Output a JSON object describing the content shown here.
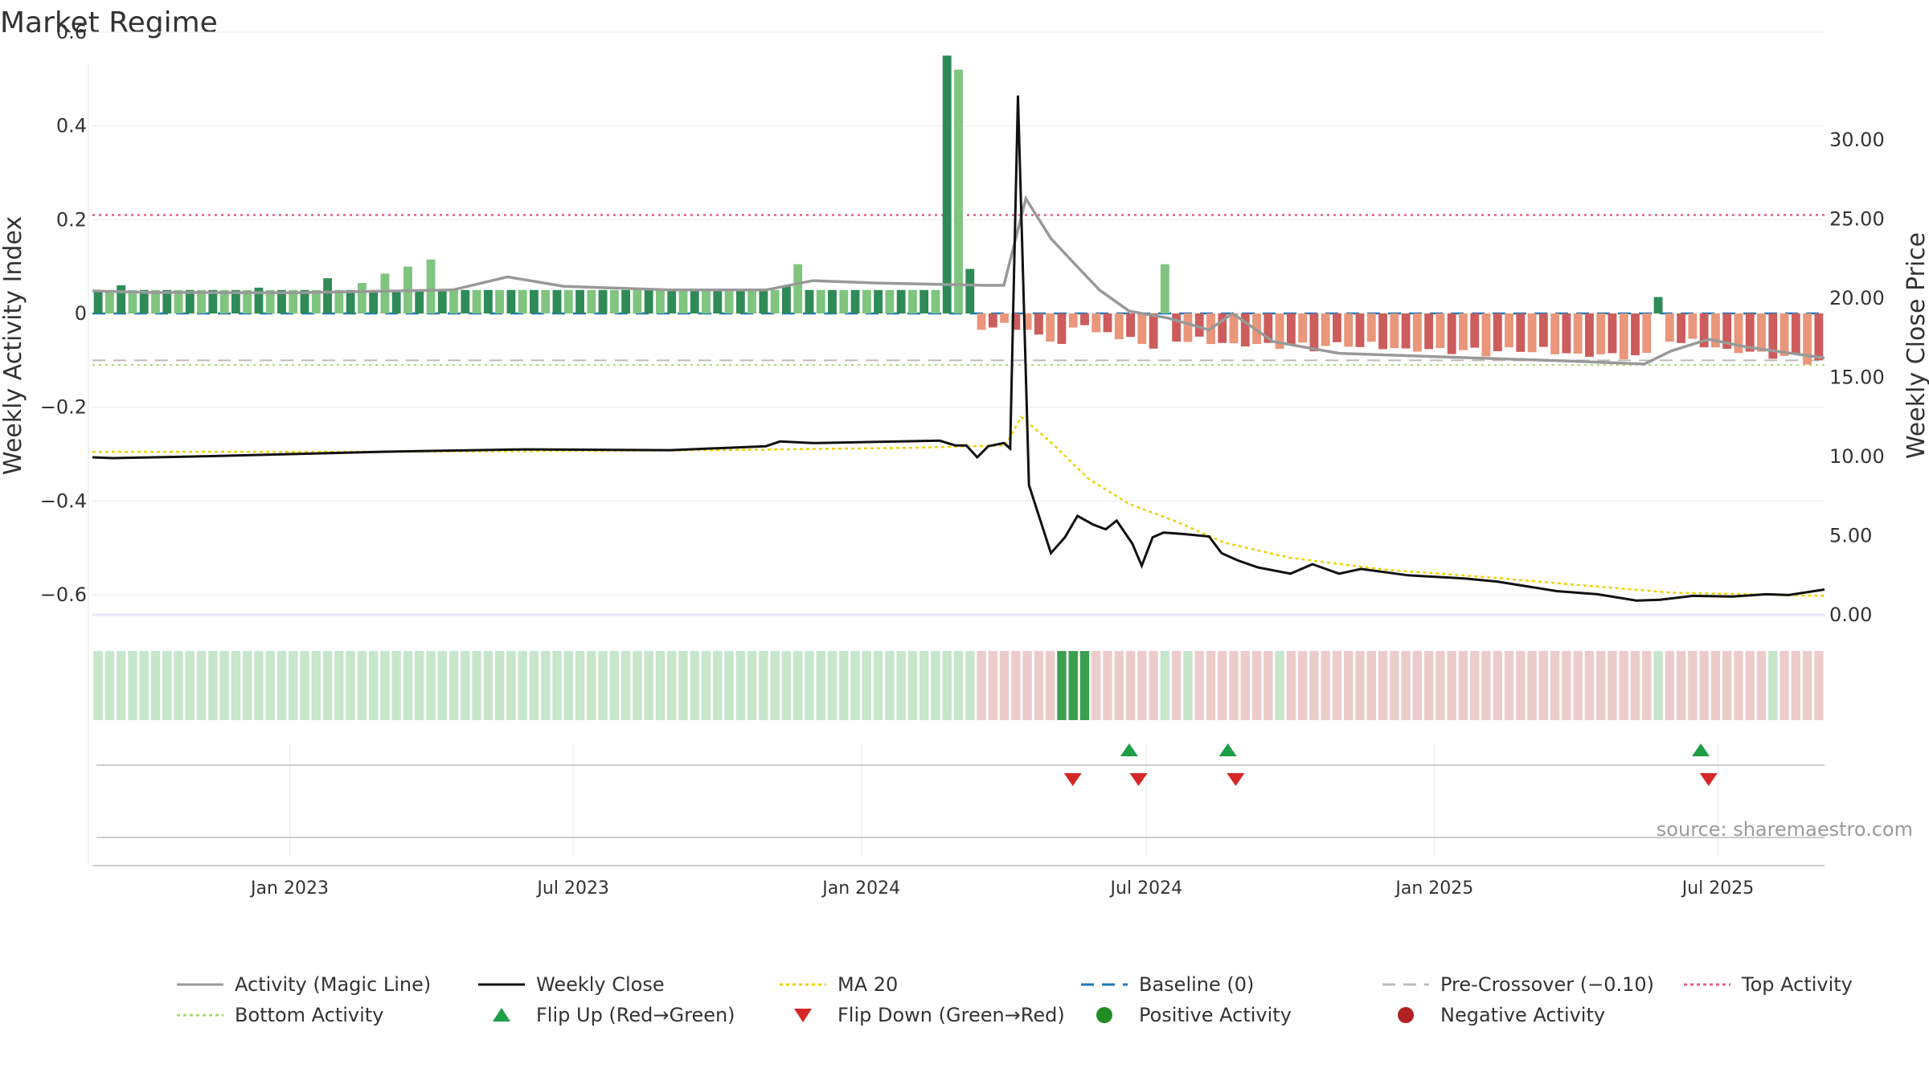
{
  "chart_data": {
    "type": "bar",
    "title": "Market Regime",
    "ylabel_left": "Weekly Activity Index",
    "ylabel_right": "Weekly Close Price",
    "ylim_left": [
      -0.6,
      0.6
    ],
    "ylim_right": [
      0,
      34
    ],
    "yticks_left": [
      "0.6",
      "0.4",
      "0.2",
      "0",
      "−0.2",
      "−0.4",
      "−0.6"
    ],
    "yticks_left_values": [
      0.6,
      0.4,
      0.2,
      0,
      -0.2,
      -0.4,
      -0.6
    ],
    "yticks_right": [
      "30.00",
      "25.00",
      "20.00",
      "15.00",
      "10.00",
      "5.00",
      "0.00"
    ],
    "yticks_right_values": [
      30,
      25,
      20,
      15,
      10,
      5,
      0
    ],
    "xticks": [
      {
        "label": "Jan 2023",
        "date": "2023-01-01"
      },
      {
        "label": "Jul 2023",
        "date": "2023-07-01"
      },
      {
        "label": "Jan 2024",
        "date": "2024-01-01"
      },
      {
        "label": "Jul 2024",
        "date": "2024-07-01"
      },
      {
        "label": "Jan 2025",
        "date": "2025-01-01"
      },
      {
        "label": "Jul 2025",
        "date": "2025-07-01"
      }
    ],
    "x_start": "2022-08-28",
    "x_end": "2025-09-07",
    "reference_lines": {
      "top_activity": 0.21,
      "baseline": 0,
      "pre_crossover": -0.1,
      "bottom_activity": -0.11
    },
    "activity_segments": [
      {
        "count": 74,
        "value": 0.05,
        "peaks": {
          "2": 0.06,
          "10": 0.05,
          "14": 0.055,
          "18": 0.05,
          "20": 0.075,
          "23": 0.065,
          "25": 0.085,
          "27": 0.1,
          "29": 0.115,
          "36": 0.05,
          "60": 0.06,
          "61": 0.105,
          "73": 0.05
        }
      },
      {
        "count": 3,
        "values": [
          0.55,
          0.52,
          0.095
        ]
      },
      {
        "count": 8,
        "values": [
          -0.035,
          -0.03,
          -0.02,
          -0.035,
          -0.035,
          -0.045,
          -0.06,
          -0.065
        ]
      },
      {
        "count": 8,
        "values": [
          -0.03,
          -0.025,
          -0.04,
          -0.04,
          -0.055,
          -0.05,
          -0.065,
          -0.075
        ]
      },
      {
        "count": 1,
        "values": [
          0.105
        ]
      },
      {
        "count": 42,
        "start": -0.06,
        "end": -0.09
      },
      {
        "count": 1,
        "values": [
          0.035
        ]
      },
      {
        "count": 14,
        "start": -0.06,
        "end": -0.1
      }
    ],
    "magic_line": [
      [
        "2022-08-28",
        0.048
      ],
      [
        "2022-10-01",
        0.045
      ],
      [
        "2023-01-01",
        0.044
      ],
      [
        "2023-04-15",
        0.05
      ],
      [
        "2023-05-20",
        0.078
      ],
      [
        "2023-06-25",
        0.058
      ],
      [
        "2023-09-01",
        0.05
      ],
      [
        "2023-11-01",
        0.05
      ],
      [
        "2023-12-01",
        0.07
      ],
      [
        "2024-01-10",
        0.065
      ],
      [
        "2024-03-20",
        0.06
      ],
      [
        "2024-04-01",
        0.06
      ],
      [
        "2024-04-15",
        0.245
      ],
      [
        "2024-05-01",
        0.16
      ],
      [
        "2024-05-15",
        0.11
      ],
      [
        "2024-06-01",
        0.05
      ],
      [
        "2024-06-20",
        0.005
      ],
      [
        "2024-07-15",
        -0.01
      ],
      [
        "2024-08-10",
        -0.035
      ],
      [
        "2024-08-25",
        0.0
      ],
      [
        "2024-09-20",
        -0.06
      ],
      [
        "2024-11-01",
        -0.085
      ],
      [
        "2025-01-01",
        -0.092
      ],
      [
        "2025-04-01",
        -0.102
      ],
      [
        "2025-05-15",
        -0.108
      ],
      [
        "2025-06-01",
        -0.08
      ],
      [
        "2025-06-25",
        -0.055
      ],
      [
        "2025-07-20",
        -0.072
      ],
      [
        "2025-09-07",
        -0.095
      ]
    ],
    "weekly_close": [
      [
        "2022-08-28",
        9.95
      ],
      [
        "2022-09-10",
        9.9
      ],
      [
        "2022-11-01",
        10.0
      ],
      [
        "2023-03-01",
        10.3
      ],
      [
        "2023-06-01",
        10.45
      ],
      [
        "2023-09-01",
        10.4
      ],
      [
        "2023-11-01",
        10.65
      ],
      [
        "2023-11-10",
        10.95
      ],
      [
        "2023-12-01",
        10.85
      ],
      [
        "2024-02-20",
        11.0
      ],
      [
        "2024-03-01",
        10.7
      ],
      [
        "2024-03-08",
        10.7
      ],
      [
        "2024-03-15",
        9.95
      ],
      [
        "2024-03-22",
        10.65
      ],
      [
        "2024-04-01",
        10.85
      ],
      [
        "2024-04-05",
        10.5
      ],
      [
        "2024-04-10",
        32.8
      ],
      [
        "2024-04-17",
        8.2
      ],
      [
        "2024-05-01",
        3.9
      ],
      [
        "2024-05-10",
        4.9
      ],
      [
        "2024-05-18",
        6.25
      ],
      [
        "2024-05-28",
        5.7
      ],
      [
        "2024-06-05",
        5.4
      ],
      [
        "2024-06-12",
        5.95
      ],
      [
        "2024-06-22",
        4.5
      ],
      [
        "2024-06-28",
        3.1
      ],
      [
        "2024-07-05",
        4.9
      ],
      [
        "2024-07-12",
        5.2
      ],
      [
        "2024-07-25",
        5.1
      ],
      [
        "2024-08-10",
        4.95
      ],
      [
        "2024-08-18",
        3.9
      ],
      [
        "2024-08-28",
        3.45
      ],
      [
        "2024-09-10",
        3.0
      ],
      [
        "2024-10-01",
        2.6
      ],
      [
        "2024-10-15",
        3.2
      ],
      [
        "2024-11-01",
        2.6
      ],
      [
        "2024-11-15",
        2.9
      ],
      [
        "2024-12-15",
        2.5
      ],
      [
        "2025-01-20",
        2.3
      ],
      [
        "2025-02-10",
        2.1
      ],
      [
        "2025-03-20",
        1.5
      ],
      [
        "2025-04-15",
        1.3
      ],
      [
        "2025-05-10",
        0.9
      ],
      [
        "2025-05-25",
        0.95
      ],
      [
        "2025-06-15",
        1.2
      ],
      [
        "2025-07-10",
        1.15
      ],
      [
        "2025-08-01",
        1.3
      ],
      [
        "2025-08-15",
        1.25
      ],
      [
        "2025-09-07",
        1.6
      ]
    ],
    "ma20": [
      [
        "2022-08-28",
        10.3
      ],
      [
        "2023-03-01",
        10.3
      ],
      [
        "2023-10-01",
        10.4
      ],
      [
        "2024-02-01",
        10.55
      ],
      [
        "2024-04-02",
        10.7
      ],
      [
        "2024-04-12",
        12.5
      ],
      [
        "2024-05-01",
        10.9
      ],
      [
        "2024-05-25",
        8.6
      ],
      [
        "2024-06-20",
        7.0
      ],
      [
        "2024-07-20",
        5.9
      ],
      [
        "2024-08-20",
        4.55
      ],
      [
        "2024-10-01",
        3.6
      ],
      [
        "2024-12-01",
        2.85
      ],
      [
        "2025-02-01",
        2.4
      ],
      [
        "2025-04-01",
        1.9
      ],
      [
        "2025-06-01",
        1.4
      ],
      [
        "2025-09-07",
        1.2
      ]
    ],
    "flips": {
      "up": [
        "2024-06-20",
        "2024-08-22",
        "2025-06-20"
      ],
      "down": [
        "2024-05-15",
        "2024-06-26",
        "2024-08-27",
        "2025-06-25"
      ]
    },
    "regime_strip": {
      "highlight_green": [
        "2024-04-08",
        "2024-04-15",
        "2024-04-22"
      ],
      "light_green_weeks": [
        "2024-06-25",
        "2024-08-20",
        "2025-06-16"
      ]
    },
    "colors": {
      "positive_dark": "#2e8b57",
      "positive_light": "#7fc47f",
      "negative_dark": "#cd5c5c",
      "negative_light": "#e9967a",
      "strip_green": "#c7e6cc",
      "strip_red": "#ecccca",
      "strip_green_dark": "#3a9f4f",
      "magic_line": "#999999",
      "weekly_close": "#111111",
      "ma20": "#f0d000",
      "baseline": "#1f77b4",
      "pre_crossover": "#bbbbbb",
      "top_activity": "#e06080",
      "bottom_activity": "#a8d878",
      "flip_up": "#1e9e46",
      "flip_down": "#d62728",
      "positive_dot": "#228b22",
      "negative_dot": "#b22222"
    },
    "legend": [
      {
        "label": "Activity (Magic Line)",
        "kind": "line-solid",
        "color": "#999999"
      },
      {
        "label": "Weekly Close",
        "kind": "line-solid",
        "color": "#111111"
      },
      {
        "label": "MA 20",
        "kind": "line-dotted",
        "color": "#f0d000"
      },
      {
        "label": "Baseline (0)",
        "kind": "line-dashed",
        "color": "#1f77b4"
      },
      {
        "label": "Pre-Crossover (−0.10)",
        "kind": "line-dashed",
        "color": "#bbbbbb"
      },
      {
        "label": "Top Activity",
        "kind": "line-dotted",
        "color": "#e06080"
      },
      {
        "label": "Bottom Activity",
        "kind": "line-dotted",
        "color": "#a8d878"
      },
      {
        "label": "Flip Up (Red→Green)",
        "kind": "tri-up",
        "color": "#1e9e46"
      },
      {
        "label": "Flip Down (Green→Red)",
        "kind": "tri-down",
        "color": "#d62728"
      },
      {
        "label": "Positive Activity",
        "kind": "dot",
        "color": "#228b22"
      },
      {
        "label": "Negative Activity",
        "kind": "dot",
        "color": "#b22222"
      }
    ],
    "source": "source: sharemaestro.com"
  }
}
